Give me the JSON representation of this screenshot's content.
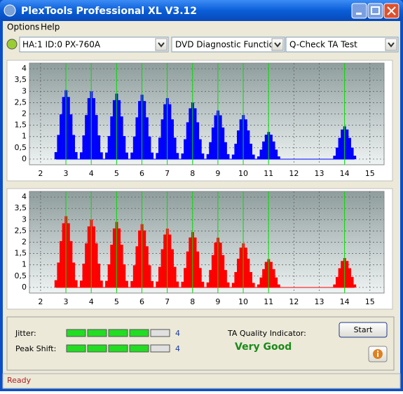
{
  "window": {
    "title": "PlexTools Professional XL V3.12",
    "status": "Ready"
  },
  "menu": [
    "Options",
    "Help"
  ],
  "toolbar": {
    "drive": "HA:1 ID:0  PX-760A",
    "function": "DVD Diagnostic Functions",
    "test": "Q-Check TA Test"
  },
  "chart_data": [
    {
      "type": "bar",
      "color": "#0000ff",
      "grid": true,
      "marker_color": "#00e000",
      "xlim": [
        1.56,
        15.56
      ],
      "ylim": [
        -0.25,
        4.25
      ],
      "xticks": [
        2,
        3,
        4,
        5,
        6,
        7,
        8,
        9,
        10,
        11,
        12,
        13,
        14,
        15
      ],
      "yticks": [
        0,
        {
          "value": 0.5,
          "label": "0,5"
        },
        1,
        {
          "value": 1.5,
          "label": "1,5"
        },
        2,
        {
          "value": 2.5,
          "label": "2,5"
        },
        3,
        {
          "value": 3.5,
          "label": "3,5"
        },
        4
      ],
      "markers": [
        3,
        4,
        5,
        6,
        7,
        8,
        9,
        10,
        11,
        14
      ],
      "x": [
        2.6,
        2.7,
        2.8,
        2.9,
        3,
        3.1,
        3.2,
        3.3,
        3.4,
        3.6,
        3.7,
        3.8,
        3.9,
        4,
        4.1,
        4.2,
        4.3,
        4.4,
        4.6,
        4.7,
        4.8,
        4.9,
        5,
        5.1,
        5.2,
        5.3,
        5.4,
        5.6,
        5.7,
        5.8,
        5.9,
        6,
        6.1,
        6.2,
        6.3,
        6.4,
        6.6,
        6.7,
        6.8,
        6.9,
        7,
        7.1,
        7.2,
        7.3,
        7.4,
        7.6,
        7.7,
        7.8,
        7.9,
        8,
        8.1,
        8.2,
        8.3,
        8.4,
        8.6,
        8.7,
        8.8,
        8.9,
        9,
        9.1,
        9.2,
        9.3,
        9.4,
        9.6,
        9.7,
        9.8,
        9.9,
        10,
        10.1,
        10.2,
        10.3,
        10.4,
        10.6,
        10.7,
        10.8,
        10.9,
        11,
        11.1,
        11.2,
        11.3,
        11.4,
        13.6,
        13.7,
        13.8,
        13.9,
        14,
        14.1,
        14.2,
        14.3,
        14.4
      ],
      "values": [
        0.31,
        1.07,
        1.98,
        2.75,
        3.05,
        2.75,
        1.98,
        1.07,
        0.31,
        0.3,
        1.05,
        1.95,
        2.7,
        3,
        2.7,
        1.95,
        1.05,
        0.3,
        0.29,
        1.02,
        1.89,
        2.61,
        2.9,
        2.61,
        1.89,
        1.02,
        0.29,
        0.29,
        1,
        1.85,
        2.57,
        2.85,
        2.57,
        1.85,
        1,
        0.29,
        0.27,
        0.95,
        1.76,
        2.43,
        2.7,
        2.43,
        1.76,
        0.95,
        0.27,
        0.25,
        0.88,
        1.63,
        2.25,
        2.5,
        2.25,
        1.63,
        0.88,
        0.25,
        0.22,
        0.75,
        1.4,
        1.94,
        2.15,
        1.94,
        1.4,
        0.75,
        0.22,
        0.2,
        0.68,
        1.27,
        1.76,
        1.95,
        1.76,
        1.27,
        0.68,
        0.2,
        0.12,
        0.42,
        0.78,
        1.08,
        1.2,
        1.08,
        0.78,
        0.42,
        0.12,
        0.15,
        0.51,
        0.94,
        1.31,
        1.45,
        1.31,
        0.94,
        0.51,
        0.15
      ]
    },
    {
      "type": "bar",
      "color": "#ff0000",
      "grid": true,
      "marker_color": "#00e000",
      "xlim": [
        1.56,
        15.56
      ],
      "ylim": [
        -0.25,
        4.25
      ],
      "xticks": [
        2,
        3,
        4,
        5,
        6,
        7,
        8,
        9,
        10,
        11,
        12,
        13,
        14,
        15
      ],
      "yticks": [
        0,
        {
          "value": 0.5,
          "label": "0,5"
        },
        1,
        {
          "value": 1.5,
          "label": "1,5"
        },
        2,
        {
          "value": 2.5,
          "label": "2,5"
        },
        3,
        {
          "value": 3.5,
          "label": "3,5"
        },
        4
      ],
      "markers": [
        3,
        4,
        5,
        6,
        7,
        8,
        9,
        10,
        11,
        14
      ],
      "x": [
        2.6,
        2.7,
        2.8,
        2.9,
        3,
        3.1,
        3.2,
        3.3,
        3.4,
        3.6,
        3.7,
        3.8,
        3.9,
        4,
        4.1,
        4.2,
        4.3,
        4.4,
        4.6,
        4.7,
        4.8,
        4.9,
        5,
        5.1,
        5.2,
        5.3,
        5.4,
        5.6,
        5.7,
        5.8,
        5.9,
        6,
        6.1,
        6.2,
        6.3,
        6.4,
        6.6,
        6.7,
        6.8,
        6.9,
        7,
        7.1,
        7.2,
        7.3,
        7.4,
        7.6,
        7.7,
        7.8,
        7.9,
        8,
        8.1,
        8.2,
        8.3,
        8.4,
        8.6,
        8.7,
        8.8,
        8.9,
        9,
        9.1,
        9.2,
        9.3,
        9.4,
        9.6,
        9.7,
        9.8,
        9.9,
        10,
        10.1,
        10.2,
        10.3,
        10.4,
        10.6,
        10.7,
        10.8,
        10.9,
        11,
        11.1,
        11.2,
        11.3,
        11.4,
        13.6,
        13.7,
        13.8,
        13.9,
        14,
        14.1,
        14.2,
        14.3,
        14.4
      ],
      "values": [
        0.32,
        1.1,
        2.05,
        2.84,
        3.15,
        2.84,
        2.05,
        1.1,
        0.32,
        0.3,
        1.05,
        1.95,
        2.7,
        3,
        2.7,
        1.95,
        1.05,
        0.3,
        0.29,
        1.02,
        1.89,
        2.61,
        2.9,
        2.61,
        1.89,
        1.02,
        0.29,
        0.28,
        0.98,
        1.82,
        2.52,
        2.8,
        2.52,
        1.82,
        0.98,
        0.28,
        0.26,
        0.91,
        1.69,
        2.34,
        2.6,
        2.34,
        1.69,
        0.91,
        0.26,
        0.25,
        0.86,
        1.59,
        2.21,
        2.45,
        2.21,
        1.59,
        0.86,
        0.25,
        0.22,
        0.77,
        1.43,
        1.98,
        2.2,
        1.98,
        1.43,
        0.77,
        0.22,
        0.2,
        0.68,
        1.27,
        1.76,
        1.95,
        1.76,
        1.27,
        0.68,
        0.2,
        0.13,
        0.44,
        0.81,
        1.13,
        1.25,
        1.13,
        0.81,
        0.44,
        0.13,
        0.13,
        0.46,
        0.85,
        1.17,
        1.3,
        1.17,
        0.85,
        0.46,
        0.13
      ]
    }
  ],
  "results": {
    "jitter": {
      "label": "Jitter:",
      "value": 4
    },
    "peak_shift": {
      "label": "Peak Shift:",
      "value": 4
    },
    "quality_label": "TA Quality Indicator:",
    "quality": "Very Good"
  },
  "buttons": {
    "start": "Start"
  }
}
